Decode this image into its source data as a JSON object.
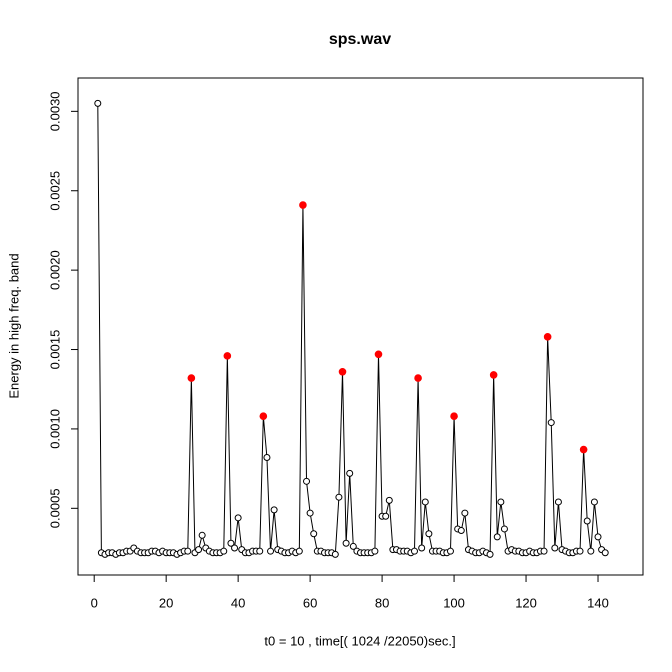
{
  "chart_data": {
    "type": "line",
    "title": "sps.wav",
    "x_label": "t0 = 10 , time[( 1024 /22050)sec.]",
    "y_label": "Energy in high freq. band",
    "xlim": [
      -4.5,
      152.5
    ],
    "ylim": [
      8e-05,
      0.00321
    ],
    "xticks": [
      0,
      20,
      40,
      60,
      80,
      100,
      120,
      140
    ],
    "yticks": [
      0.0005,
      {
        "value": 0.001,
        "label": "0.0010"
      },
      0.0015,
      {
        "value": 0.002,
        "label": "0.0020"
      },
      0.0025,
      {
        "value": 0.003,
        "label": "0.0030"
      }
    ],
    "series": [
      {
        "color": "#000000",
        "x": [
          1,
          2,
          3,
          4,
          5,
          6,
          7,
          8,
          9,
          10,
          11,
          12,
          13,
          14,
          15,
          16,
          17,
          18,
          19,
          20,
          21,
          22,
          23,
          24,
          25,
          26,
          27,
          28,
          29,
          30,
          31,
          32,
          33,
          34,
          35,
          36,
          37,
          38,
          39,
          40,
          41,
          42,
          43,
          44,
          45,
          46,
          47,
          48,
          49,
          50,
          51,
          52,
          53,
          54,
          55,
          56,
          57,
          58,
          59,
          60,
          61,
          62,
          63,
          64,
          65,
          66,
          67,
          68,
          69,
          70,
          71,
          72,
          73,
          74,
          75,
          76,
          77,
          78,
          79,
          80,
          81,
          82,
          83,
          84,
          85,
          86,
          87,
          88,
          89,
          90,
          91,
          92,
          93,
          94,
          95,
          96,
          97,
          98,
          99,
          100,
          101,
          102,
          103,
          104,
          105,
          106,
          107,
          108,
          109,
          110,
          111,
          112,
          113,
          114,
          115,
          116,
          117,
          118,
          119,
          120,
          121,
          122,
          123,
          124,
          125,
          126,
          127,
          128,
          129,
          130,
          131,
          132,
          133,
          134,
          135,
          136,
          137,
          138,
          139,
          140,
          141,
          142
        ],
        "values": [
          0.00305,
          0.00022,
          0.00021,
          0.00022,
          0.00022,
          0.00021,
          0.00022,
          0.00022,
          0.00023,
          0.00023,
          0.00025,
          0.00023,
          0.00022,
          0.00022,
          0.00022,
          0.00023,
          0.00023,
          0.00022,
          0.00023,
          0.00022,
          0.00022,
          0.00022,
          0.00021,
          0.00022,
          0.00023,
          0.00023,
          0.00132,
          0.00022,
          0.00024,
          0.00033,
          0.00025,
          0.00023,
          0.00022,
          0.00022,
          0.00022,
          0.00023,
          0.00146,
          0.00028,
          0.00025,
          0.00044,
          0.00024,
          0.00022,
          0.00022,
          0.00023,
          0.00023,
          0.00023,
          0.00108,
          0.00082,
          0.00023,
          0.00049,
          0.00024,
          0.00023,
          0.00022,
          0.00022,
          0.00023,
          0.00022,
          0.00023,
          0.00241,
          0.00067,
          0.00047,
          0.00034,
          0.00023,
          0.00023,
          0.00022,
          0.00022,
          0.00022,
          0.00021,
          0.00057,
          0.00136,
          0.00028,
          0.00072,
          0.00026,
          0.00023,
          0.00022,
          0.00022,
          0.00022,
          0.00022,
          0.00023,
          0.00147,
          0.00045,
          0.00045,
          0.00055,
          0.00024,
          0.00024,
          0.00023,
          0.00023,
          0.00023,
          0.00022,
          0.00023,
          0.00132,
          0.00025,
          0.00054,
          0.00034,
          0.00023,
          0.00023,
          0.00023,
          0.00022,
          0.00022,
          0.00023,
          0.00108,
          0.00037,
          0.00036,
          0.00047,
          0.00024,
          0.00023,
          0.00022,
          0.00022,
          0.00023,
          0.00022,
          0.00021,
          0.00134,
          0.00032,
          0.00054,
          0.00037,
          0.00023,
          0.00024,
          0.00023,
          0.00023,
          0.00022,
          0.00022,
          0.00023,
          0.00022,
          0.00022,
          0.00023,
          0.00023,
          0.00158,
          0.00104,
          0.00025,
          0.00054,
          0.00024,
          0.00023,
          0.00022,
          0.00022,
          0.00023,
          0.00023,
          0.00087,
          0.00042,
          0.00023,
          0.00054,
          0.00032,
          0.00024,
          0.00022
        ]
      },
      {
        "color": "#ff0000",
        "x": [
          27,
          37,
          47,
          58,
          69,
          79,
          90,
          100,
          111,
          126,
          136
        ],
        "values": [
          0.00132,
          0.00146,
          0.00108,
          0.00241,
          0.00136,
          0.00147,
          0.00132,
          0.00108,
          0.00134,
          0.00158,
          0.00087
        ]
      }
    ]
  }
}
